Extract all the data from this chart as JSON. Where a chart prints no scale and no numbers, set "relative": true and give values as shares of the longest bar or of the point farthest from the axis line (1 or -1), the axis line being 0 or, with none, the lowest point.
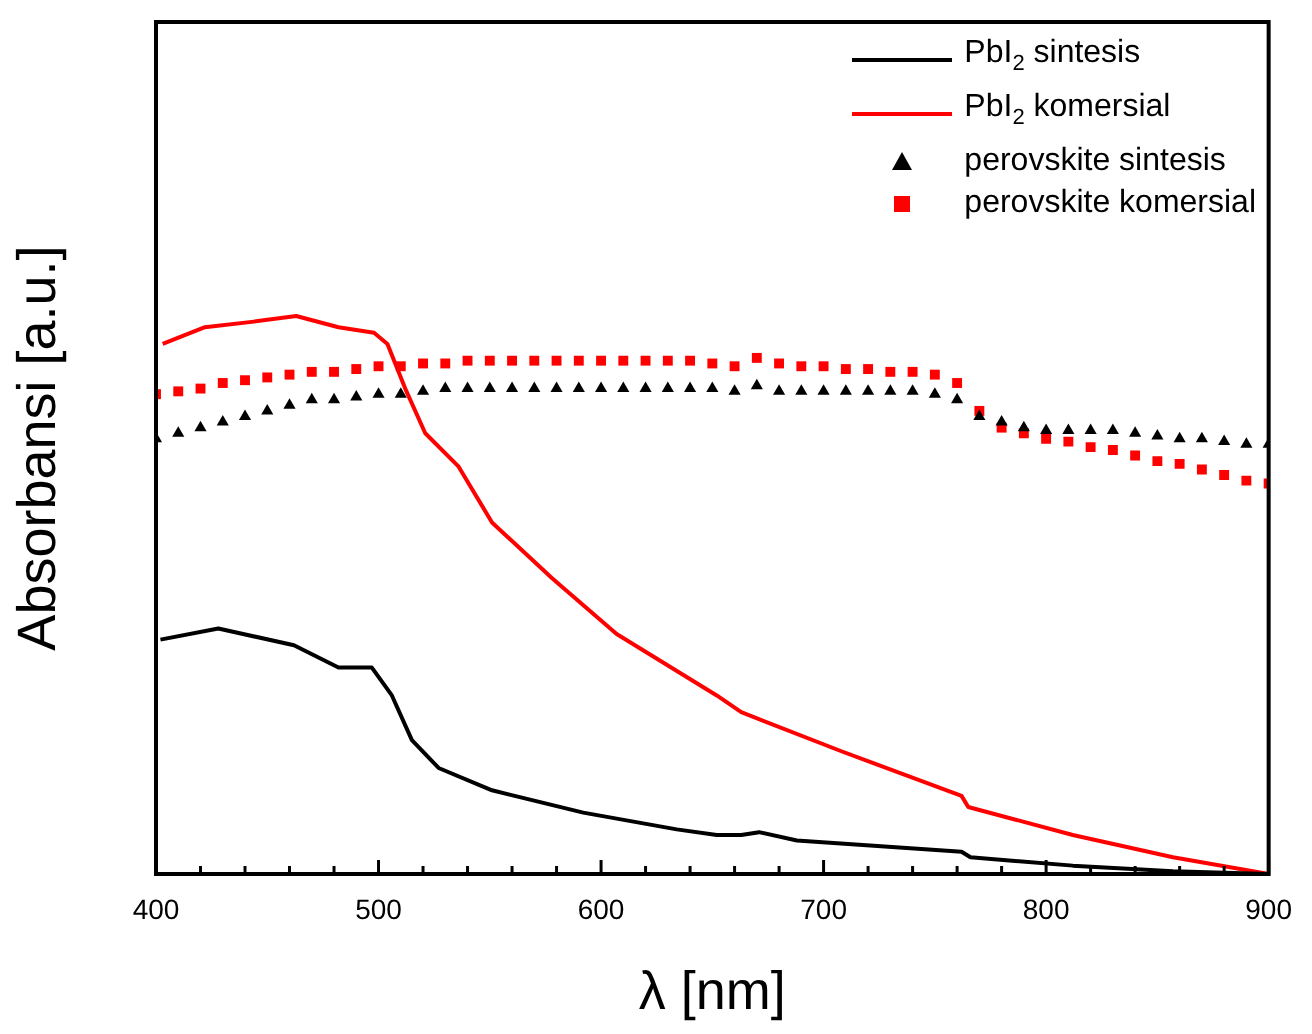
{
  "chart_data": {
    "type": "line",
    "xlabel": "λ [nm]",
    "ylabel": "Absorbansi [a.u.]",
    "relative": true,
    "xlim": [
      400,
      900
    ],
    "xticks": [
      400,
      {
        "value": 420,
        "label": null
      },
      {
        "value": 440,
        "label": null
      },
      {
        "value": 460,
        "label": null
      },
      {
        "value": 480,
        "label": null
      },
      500,
      {
        "value": 520,
        "label": null
      },
      {
        "value": 540,
        "label": null
      },
      {
        "value": 560,
        "label": null
      },
      {
        "value": 580,
        "label": null
      },
      600,
      {
        "value": 620,
        "label": null
      },
      {
        "value": 640,
        "label": null
      },
      {
        "value": 660,
        "label": null
      },
      {
        "value": 680,
        "label": null
      },
      700,
      {
        "value": 720,
        "label": null
      },
      {
        "value": 740,
        "label": null
      },
      {
        "value": 760,
        "label": null
      },
      {
        "value": 780,
        "label": null
      },
      800,
      {
        "value": 820,
        "label": null
      },
      {
        "value": 840,
        "label": null
      },
      {
        "value": 860,
        "label": null
      },
      {
        "value": 880,
        "label": null
      },
      900
    ],
    "grid": false,
    "legend": "top right",
    "tick_labels": "x",
    "series": [
      {
        "name": "PbI$_{2}$ sintesis",
        "marker": "none",
        "color": "#000000",
        "x": [
          402,
          428,
          462,
          482,
          497,
          506,
          515,
          527,
          551,
          592,
          634,
          652,
          663,
          671,
          688,
          762,
          766,
          812,
          857,
          900
        ],
        "values": [
          0.42,
          0.44,
          0.41,
          0.37,
          0.37,
          0.32,
          0.24,
          0.19,
          0.15,
          0.11,
          0.08,
          0.07,
          0.07,
          0.075,
          0.06,
          0.04,
          0.03,
          0.015,
          0.005,
          0
        ]
      },
      {
        "name": "PbI$_{2}$ komersial",
        "marker": "none",
        "color": "#ff0000",
        "x": [
          403,
          422,
          444,
          463,
          482,
          498,
          504,
          512,
          521,
          536,
          551,
          578,
          607,
          652,
          663,
          708,
          762,
          765,
          812,
          857,
          900
        ],
        "values": [
          0.95,
          0.98,
          0.99,
          1,
          0.98,
          0.97,
          0.95,
          0.87,
          0.79,
          0.73,
          0.63,
          0.53,
          0.43,
          0.32,
          0.29,
          0.22,
          0.14,
          0.12,
          0.07,
          0.03,
          0
        ]
      },
      {
        "name": "perovskite sintesis",
        "type": "scatter",
        "marker": "triangle",
        "color": "#000000",
        "x": [
          400,
          410,
          420,
          430,
          440,
          450,
          460,
          470,
          480,
          490,
          500,
          510,
          520,
          530,
          540,
          550,
          560,
          570,
          580,
          590,
          600,
          610,
          620,
          630,
          640,
          650,
          660,
          670,
          680,
          690,
          700,
          710,
          720,
          730,
          740,
          750,
          760,
          770,
          780,
          790,
          800,
          810,
          820,
          830,
          840,
          850,
          860,
          870,
          880,
          890,
          900
        ],
        "values": [
          0.78,
          0.79,
          0.8,
          0.81,
          0.82,
          0.83,
          0.84,
          0.85,
          0.85,
          0.855,
          0.86,
          0.86,
          0.865,
          0.87,
          0.87,
          0.87,
          0.87,
          0.87,
          0.87,
          0.87,
          0.87,
          0.87,
          0.87,
          0.87,
          0.87,
          0.87,
          0.865,
          0.875,
          0.865,
          0.865,
          0.865,
          0.865,
          0.865,
          0.865,
          0.865,
          0.86,
          0.85,
          0.82,
          0.81,
          0.8,
          0.795,
          0.795,
          0.795,
          0.795,
          0.79,
          0.785,
          0.78,
          0.78,
          0.775,
          0.77,
          0.77
        ]
      },
      {
        "name": "perovskite komersial",
        "type": "scatter",
        "marker": "square",
        "color": "#ff0000",
        "x": [
          400,
          410,
          420,
          430,
          440,
          450,
          460,
          470,
          480,
          490,
          500,
          510,
          520,
          530,
          540,
          550,
          560,
          570,
          580,
          590,
          600,
          610,
          620,
          630,
          640,
          650,
          660,
          670,
          680,
          690,
          700,
          710,
          720,
          730,
          740,
          750,
          760,
          770,
          780,
          790,
          800,
          810,
          820,
          830,
          840,
          850,
          860,
          870,
          880,
          890,
          900
        ],
        "values": [
          0.86,
          0.865,
          0.87,
          0.88,
          0.885,
          0.89,
          0.895,
          0.9,
          0.9,
          0.905,
          0.91,
          0.91,
          0.915,
          0.915,
          0.92,
          0.92,
          0.92,
          0.92,
          0.92,
          0.92,
          0.92,
          0.92,
          0.92,
          0.92,
          0.92,
          0.915,
          0.91,
          0.925,
          0.915,
          0.91,
          0.91,
          0.905,
          0.905,
          0.9,
          0.9,
          0.895,
          0.88,
          0.83,
          0.8,
          0.79,
          0.78,
          0.775,
          0.765,
          0.76,
          0.75,
          0.74,
          0.735,
          0.725,
          0.715,
          0.705,
          0.7
        ]
      }
    ]
  }
}
